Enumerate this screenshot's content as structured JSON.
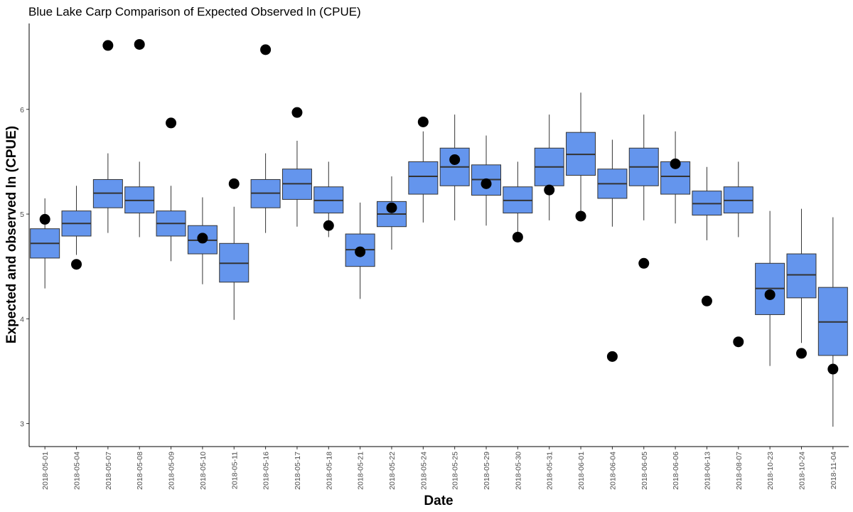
{
  "chart_data": {
    "type": "boxplot",
    "title": "Blue Lake Carp Comparison of Expected Observed ln (CPUE)",
    "xlabel": "Date",
    "ylabel": "Expected and observed ln (CPUE)",
    "ylim": [
      2.78,
      6.82
    ],
    "yticks": [
      3,
      4,
      5,
      6
    ],
    "grid": false,
    "legend": "none",
    "colors": {
      "box_fill": "#6495ED",
      "box_stroke": "#333333",
      "point": "#000000",
      "axis": "#000000"
    },
    "categories": [
      "2018-05-01",
      "2018-05-04",
      "2018-05-07",
      "2018-05-08",
      "2018-05-09",
      "2018-05-10",
      "2018-05-11",
      "2018-05-16",
      "2018-05-17",
      "2018-05-18",
      "2018-05-21",
      "2018-05-22",
      "2018-05-24",
      "2018-05-25",
      "2018-05-29",
      "2018-05-30",
      "2018-05-31",
      "2018-06-01",
      "2018-06-04",
      "2018-06-05",
      "2018-06-06",
      "2018-06-13",
      "2018-08-07",
      "2018-10-23",
      "2018-10-24",
      "2018-11-04"
    ],
    "expected": [
      {
        "whisker_low": 4.29,
        "q1": 4.58,
        "median": 4.72,
        "q3": 4.86,
        "whisker_high": 5.15
      },
      {
        "whisker_low": 4.61,
        "q1": 4.79,
        "median": 4.91,
        "q3": 5.03,
        "whisker_high": 5.27
      },
      {
        "whisker_low": 4.82,
        "q1": 5.06,
        "median": 5.2,
        "q3": 5.33,
        "whisker_high": 5.58
      },
      {
        "whisker_low": 4.78,
        "q1": 5.01,
        "median": 5.13,
        "q3": 5.26,
        "whisker_high": 5.5
      },
      {
        "whisker_low": 4.55,
        "q1": 4.79,
        "median": 4.91,
        "q3": 5.03,
        "whisker_high": 5.27
      },
      {
        "whisker_low": 4.33,
        "q1": 4.62,
        "median": 4.75,
        "q3": 4.89,
        "whisker_high": 5.16
      },
      {
        "whisker_low": 3.99,
        "q1": 4.35,
        "median": 4.53,
        "q3": 4.72,
        "whisker_high": 5.07
      },
      {
        "whisker_low": 4.82,
        "q1": 5.06,
        "median": 5.2,
        "q3": 5.33,
        "whisker_high": 5.58
      },
      {
        "whisker_low": 4.88,
        "q1": 5.14,
        "median": 5.29,
        "q3": 5.43,
        "whisker_high": 5.7
      },
      {
        "whisker_low": 4.78,
        "q1": 5.01,
        "median": 5.13,
        "q3": 5.26,
        "whisker_high": 5.5
      },
      {
        "whisker_low": 4.19,
        "q1": 4.5,
        "median": 4.66,
        "q3": 4.81,
        "whisker_high": 5.11
      },
      {
        "whisker_low": 4.66,
        "q1": 4.88,
        "median": 5.0,
        "q3": 5.12,
        "whisker_high": 5.36
      },
      {
        "whisker_low": 4.92,
        "q1": 5.19,
        "median": 5.36,
        "q3": 5.5,
        "whisker_high": 5.79
      },
      {
        "whisker_low": 4.94,
        "q1": 5.27,
        "median": 5.45,
        "q3": 5.63,
        "whisker_high": 5.95
      },
      {
        "whisker_low": 4.89,
        "q1": 5.18,
        "median": 5.33,
        "q3": 5.47,
        "whisker_high": 5.75
      },
      {
        "whisker_low": 4.78,
        "q1": 5.01,
        "median": 5.13,
        "q3": 5.26,
        "whisker_high": 5.5
      },
      {
        "whisker_low": 4.94,
        "q1": 5.27,
        "median": 5.45,
        "q3": 5.63,
        "whisker_high": 5.95
      },
      {
        "whisker_low": 4.97,
        "q1": 5.37,
        "median": 5.57,
        "q3": 5.78,
        "whisker_high": 6.16
      },
      {
        "whisker_low": 4.88,
        "q1": 5.15,
        "median": 5.29,
        "q3": 5.43,
        "whisker_high": 5.71
      },
      {
        "whisker_low": 4.94,
        "q1": 5.27,
        "median": 5.45,
        "q3": 5.63,
        "whisker_high": 5.95
      },
      {
        "whisker_low": 4.91,
        "q1": 5.19,
        "median": 5.36,
        "q3": 5.5,
        "whisker_high": 5.79
      },
      {
        "whisker_low": 4.75,
        "q1": 4.99,
        "median": 5.1,
        "q3": 5.22,
        "whisker_high": 5.45
      },
      {
        "whisker_low": 4.78,
        "q1": 5.01,
        "median": 5.13,
        "q3": 5.26,
        "whisker_high": 5.5
      },
      {
        "whisker_low": 3.55,
        "q1": 4.04,
        "median": 4.29,
        "q3": 4.53,
        "whisker_high": 5.03
      },
      {
        "whisker_low": 3.77,
        "q1": 4.2,
        "median": 4.42,
        "q3": 4.62,
        "whisker_high": 5.05
      },
      {
        "whisker_low": 2.97,
        "q1": 3.65,
        "median": 3.97,
        "q3": 4.3,
        "whisker_high": 4.97
      }
    ],
    "observed": [
      4.95,
      4.52,
      6.61,
      6.62,
      5.87,
      4.77,
      5.29,
      6.57,
      5.97,
      4.89,
      4.64,
      5.06,
      5.88,
      5.52,
      5.29,
      4.78,
      5.23,
      4.98,
      3.64,
      4.53,
      5.48,
      4.17,
      3.78,
      4.23,
      3.67,
      3.52
    ]
  }
}
